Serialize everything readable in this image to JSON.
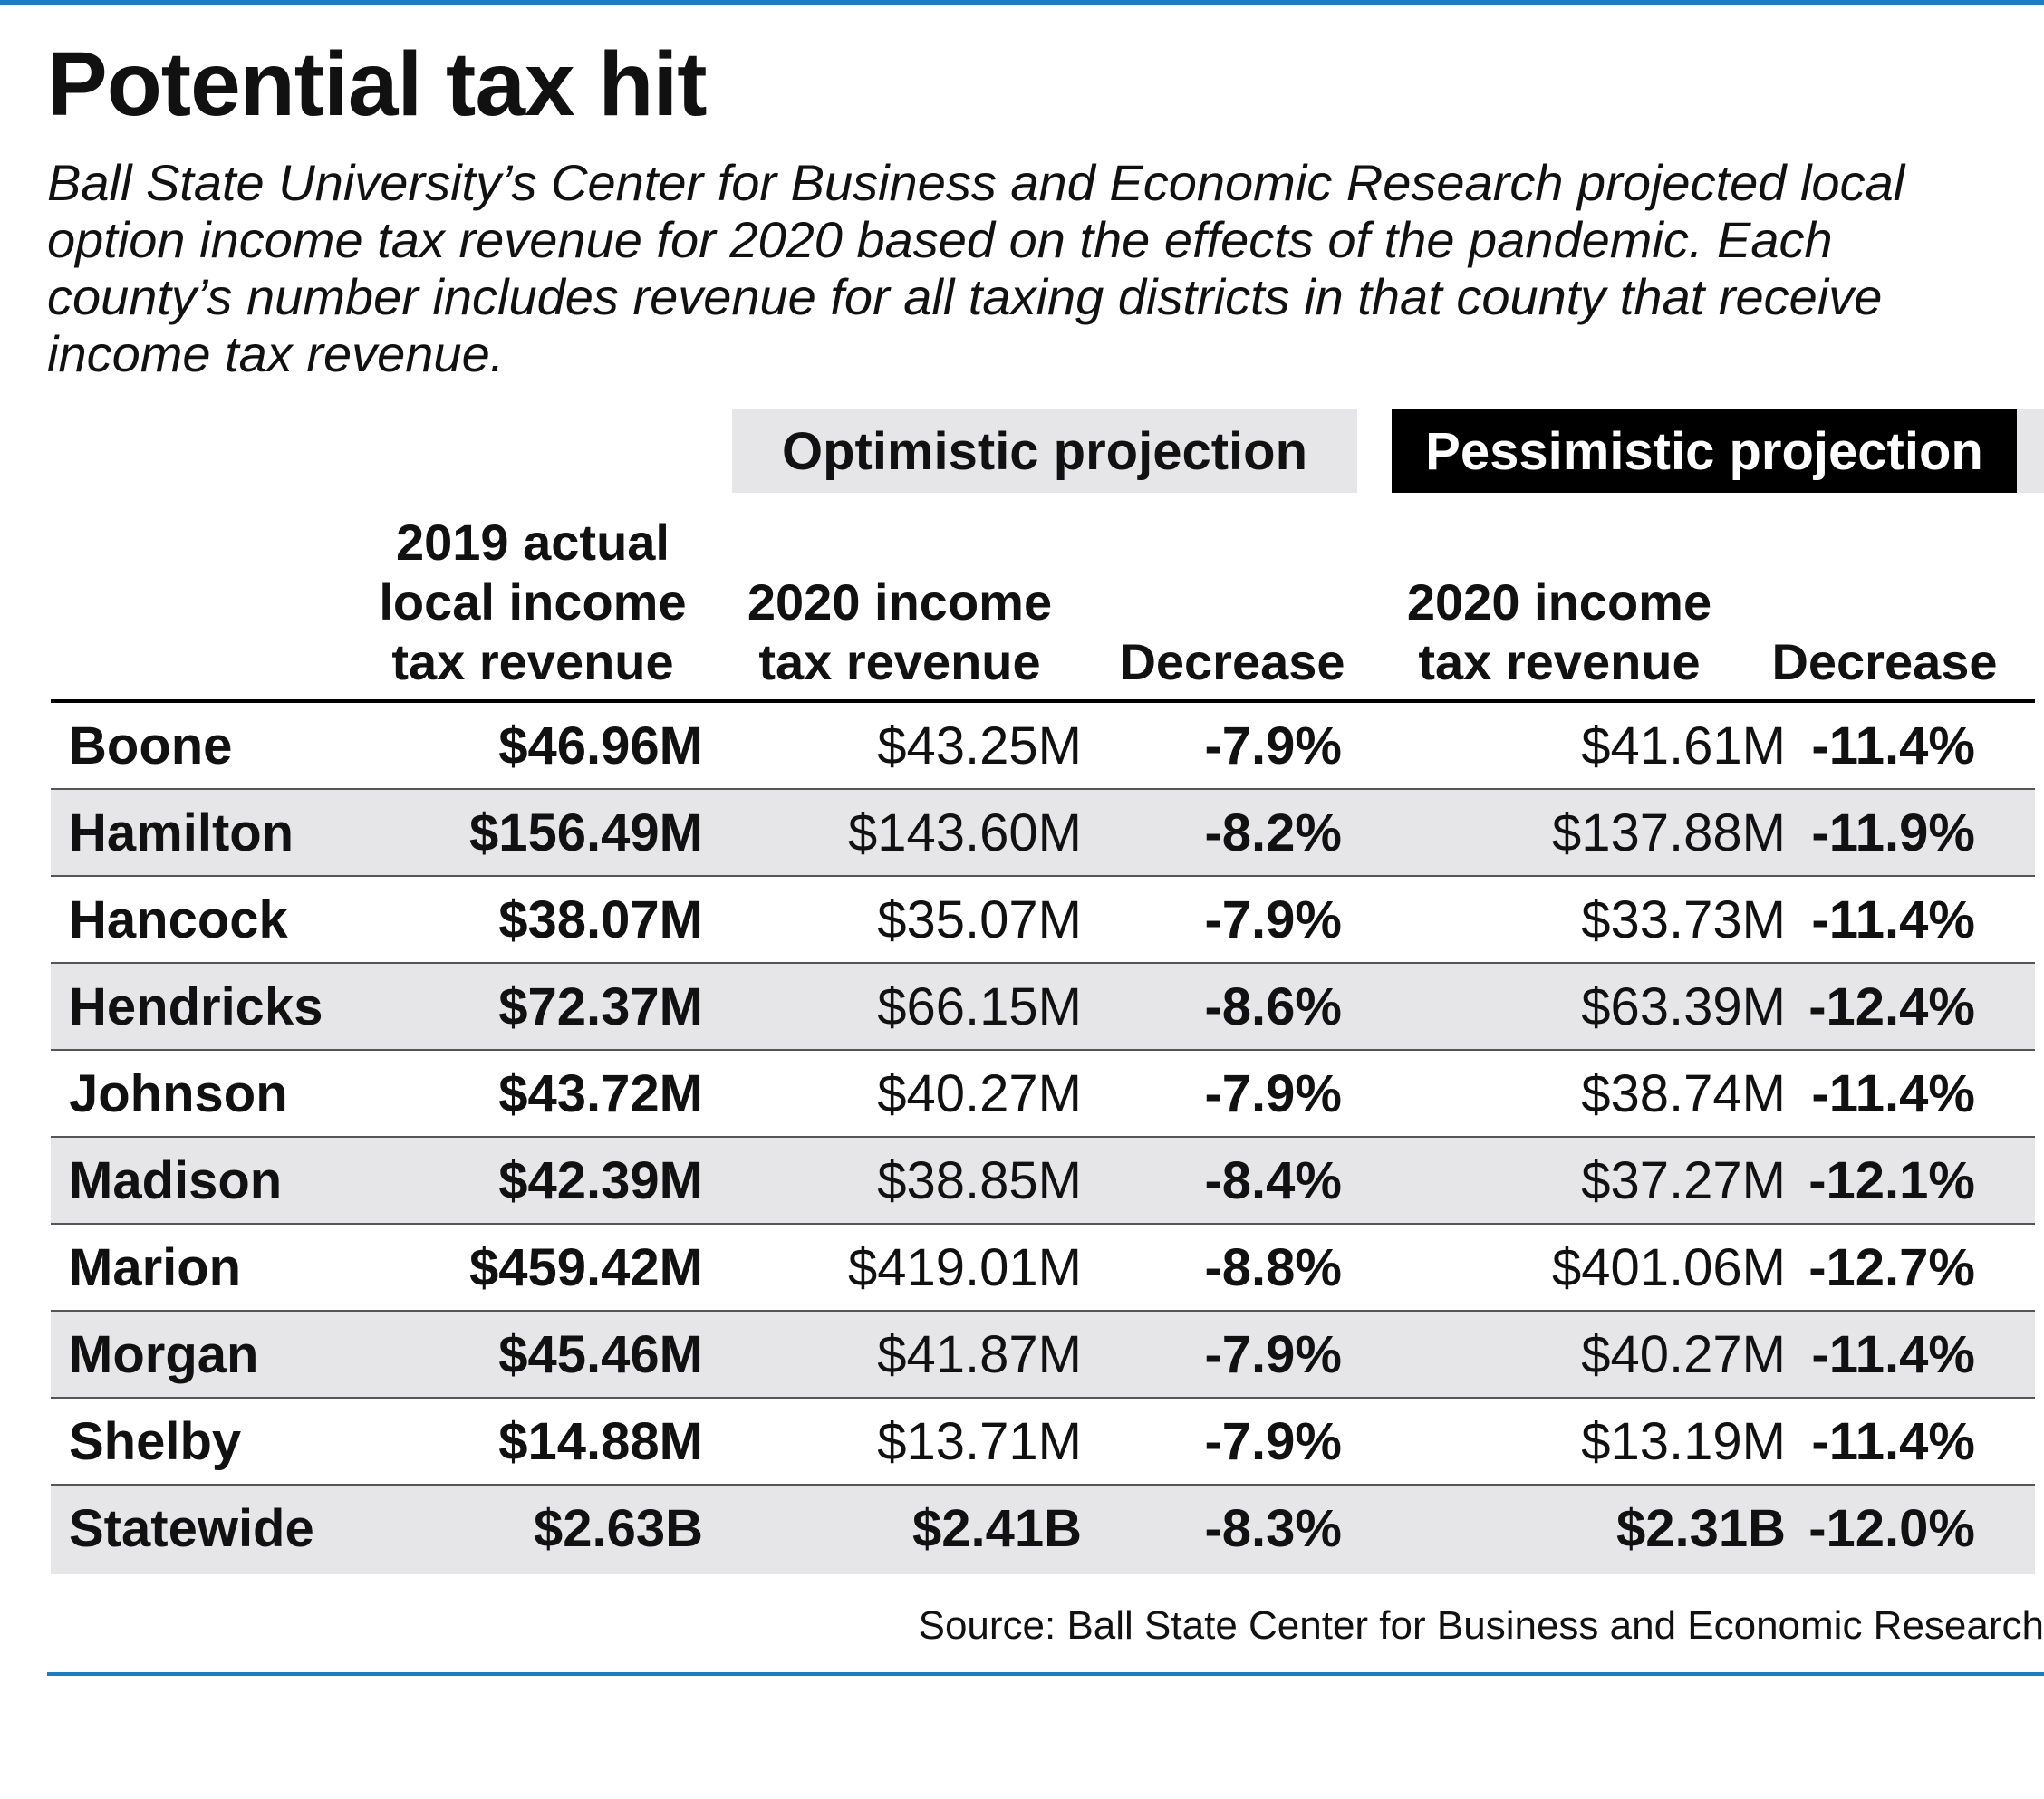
{
  "title": "Potential tax hit",
  "subtitle": "Ball State University’s Center for Business and Economic Research projected local option income tax revenue for 2020 based on the effects of the pandemic. Each county’s number includes revenue for all taxing districts in that county that receive income tax revenue.",
  "source": "Source: Ball State Center for Business and Economic Research",
  "chart_data": {
    "type": "table",
    "title": "Potential tax hit",
    "group_headers": [
      "Optimistic projection",
      "Pessimistic projection"
    ],
    "columns": {
      "actual_2019": "2019 actual local income tax revenue",
      "opt_revenue": "2020 income tax revenue",
      "opt_decrease": "Decrease",
      "pess_revenue": "2020 income tax revenue",
      "pess_decrease": "Decrease"
    },
    "rows": [
      {
        "county": "Boone",
        "actual_2019": "$46.96M",
        "opt_revenue": "$43.25M",
        "opt_decrease": "-7.9%",
        "pess_revenue": "$41.61M",
        "pess_decrease": "-11.4%"
      },
      {
        "county": "Hamilton",
        "actual_2019": "$156.49M",
        "opt_revenue": "$143.60M",
        "opt_decrease": "-8.2%",
        "pess_revenue": "$137.88M",
        "pess_decrease": "-11.9%"
      },
      {
        "county": "Hancock",
        "actual_2019": "$38.07M",
        "opt_revenue": "$35.07M",
        "opt_decrease": "-7.9%",
        "pess_revenue": "$33.73M",
        "pess_decrease": "-11.4%"
      },
      {
        "county": "Hendricks",
        "actual_2019": "$72.37M",
        "opt_revenue": "$66.15M",
        "opt_decrease": "-8.6%",
        "pess_revenue": "$63.39M",
        "pess_decrease": "-12.4%"
      },
      {
        "county": "Johnson",
        "actual_2019": "$43.72M",
        "opt_revenue": "$40.27M",
        "opt_decrease": "-7.9%",
        "pess_revenue": "$38.74M",
        "pess_decrease": "-11.4%"
      },
      {
        "county": "Madison",
        "actual_2019": "$42.39M",
        "opt_revenue": "$38.85M",
        "opt_decrease": "-8.4%",
        "pess_revenue": "$37.27M",
        "pess_decrease": "-12.1%"
      },
      {
        "county": "Marion",
        "actual_2019": "$459.42M",
        "opt_revenue": "$419.01M",
        "opt_decrease": "-8.8%",
        "pess_revenue": "$401.06M",
        "pess_decrease": "-12.7%"
      },
      {
        "county": "Morgan",
        "actual_2019": "$45.46M",
        "opt_revenue": "$41.87M",
        "opt_decrease": "-7.9%",
        "pess_revenue": "$40.27M",
        "pess_decrease": "-11.4%"
      },
      {
        "county": "Shelby",
        "actual_2019": "$14.88M",
        "opt_revenue": "$13.71M",
        "opt_decrease": "-7.9%",
        "pess_revenue": "$13.19M",
        "pess_decrease": "-11.4%"
      },
      {
        "county": "Statewide",
        "actual_2019": "$2.63B",
        "opt_revenue": "$2.41B",
        "opt_decrease": "-8.3%",
        "pess_revenue": "$2.31B",
        "pess_decrease": "-12.0%"
      }
    ],
    "colors": {
      "accent_rule": "#1a7dc4",
      "optimistic_band": "#e6e6e8",
      "pessimistic_band": "#000000",
      "row_shade": "#e6e6e8"
    }
  }
}
